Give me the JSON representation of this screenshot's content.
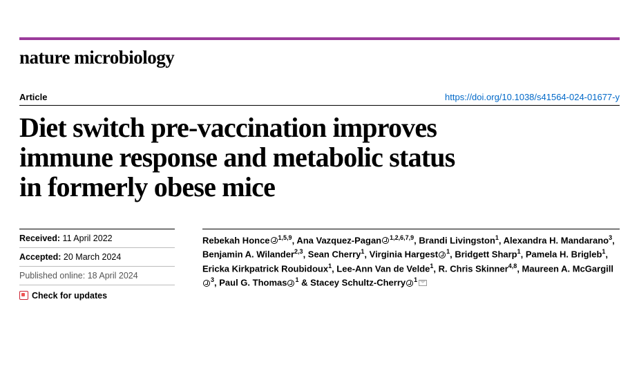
{
  "journal": "nature microbiology",
  "article_label": "Article",
  "doi": "https://doi.org/10.1038/s41564-024-01677-y",
  "title": "Diet switch pre-vaccination improves immune response and metabolic status in formerly obese mice",
  "dates": {
    "received_label": "Received:",
    "received_value": "11 April 2022",
    "accepted_label": "Accepted:",
    "accepted_value": "20 March 2024",
    "published_label": "Published online:",
    "published_value": "18 April 2024",
    "check_updates": "Check for updates"
  },
  "authors_html": "Rebekah Honce✪<sup>1,5,9</sup>, Ana Vazquez-Pagan✪<sup>1,2,6,7,9</sup>, Brandi Livingston<sup>1</sup>, Alexandra H. Mandarano<sup>3</sup>, Benjamin A. Wilander<sup>2,3</sup>, Sean Cherry<sup>1</sup>, Virginia Hargest✪<sup>1</sup>, Bridgett Sharp<sup>1</sup>, Pamela H. Brigleb<sup>1</sup>, Ericka Kirkpatrick Roubidoux<sup>1</sup>, Lee-Ann Van de Velde<sup>1</sup>, R. Chris Skinner<sup>4,8</sup>, Maureen A. McGargill✪<sup>3</sup>, Paul G. Thomas✪<sup>1</sup> & Stacey Schultz-Cherry✪<sup>1</sup>✉",
  "colors": {
    "purple_rule": "#9b3b9b",
    "link": "#0068c8",
    "text": "#000000",
    "muted": "#555555"
  }
}
